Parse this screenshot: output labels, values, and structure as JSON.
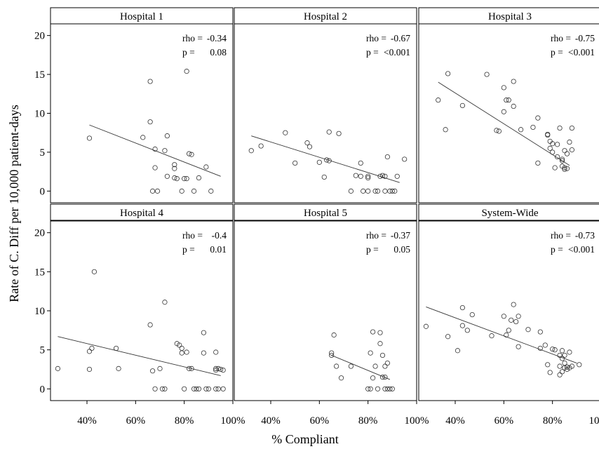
{
  "chart_data": {
    "type": "scatter",
    "xlabel": "% Compliant",
    "ylabel": "Rate of C. Diff per 10,000 patient-days",
    "xlim": [
      0.25,
      1.0
    ],
    "ylim": [
      -1.5,
      21.5
    ],
    "x_ticks": [
      0.4,
      0.6,
      0.8,
      1.0
    ],
    "x_tick_labels": [
      "40%",
      "60%",
      "80%",
      "100%"
    ],
    "y_ticks": [
      0,
      5,
      10,
      15,
      20
    ],
    "y_tick_labels": [
      "0",
      "5",
      "10",
      "15",
      "20"
    ],
    "stat_labels": {
      "rho": "rho =",
      "p": "p ="
    },
    "panels": [
      {
        "title": "Hospital 1",
        "rho": "-0.34",
        "p": "0.08",
        "fit": [
          [
            0.41,
            8.5
          ],
          [
            0.95,
            1.9
          ]
        ],
        "points": [
          [
            0.41,
            6.8
          ],
          [
            0.66,
            14.1
          ],
          [
            0.66,
            8.9
          ],
          [
            0.63,
            6.9
          ],
          [
            0.68,
            5.4
          ],
          [
            0.68,
            3.0
          ],
          [
            0.67,
            0.0
          ],
          [
            0.69,
            0.0
          ],
          [
            0.72,
            5.2
          ],
          [
            0.73,
            7.1
          ],
          [
            0.73,
            1.9
          ],
          [
            0.76,
            3.4
          ],
          [
            0.76,
            2.9
          ],
          [
            0.76,
            1.7
          ],
          [
            0.77,
            1.6
          ],
          [
            0.79,
            0.0
          ],
          [
            0.8,
            1.6
          ],
          [
            0.81,
            1.6
          ],
          [
            0.81,
            15.4
          ],
          [
            0.82,
            4.8
          ],
          [
            0.83,
            4.7
          ],
          [
            0.84,
            0.0
          ],
          [
            0.86,
            1.7
          ],
          [
            0.89,
            3.1
          ],
          [
            0.91,
            0.0
          ]
        ]
      },
      {
        "title": "Hospital 2",
        "rho": "-0.67",
        "p": "<0.001",
        "fit": [
          [
            0.32,
            7.1
          ],
          [
            0.93,
            1.1
          ]
        ],
        "points": [
          [
            0.32,
            5.2
          ],
          [
            0.36,
            5.8
          ],
          [
            0.46,
            7.5
          ],
          [
            0.5,
            3.6
          ],
          [
            0.55,
            6.2
          ],
          [
            0.56,
            5.7
          ],
          [
            0.6,
            3.7
          ],
          [
            0.63,
            4.0
          ],
          [
            0.64,
            3.9
          ],
          [
            0.64,
            7.6
          ],
          [
            0.68,
            7.4
          ],
          [
            0.73,
            0.0
          ],
          [
            0.75,
            2.0
          ],
          [
            0.77,
            3.6
          ],
          [
            0.77,
            1.9
          ],
          [
            0.78,
            0.0
          ],
          [
            0.8,
            1.9
          ],
          [
            0.8,
            1.7
          ],
          [
            0.8,
            0.0
          ],
          [
            0.83,
            0.0
          ],
          [
            0.84,
            0.0
          ],
          [
            0.85,
            1.9
          ],
          [
            0.86,
            2.0
          ],
          [
            0.87,
            1.9
          ],
          [
            0.87,
            0.0
          ],
          [
            0.88,
            4.4
          ],
          [
            0.89,
            0.0
          ],
          [
            0.9,
            0.0
          ],
          [
            0.91,
            0.0
          ],
          [
            0.92,
            1.9
          ],
          [
            0.95,
            4.1
          ],
          [
            0.62,
            1.8
          ]
        ]
      },
      {
        "title": "Hospital 3",
        "rho": "-0.75",
        "p": "<0.001",
        "fit": [
          [
            0.33,
            14.0
          ],
          [
            0.87,
            3.3
          ]
        ],
        "points": [
          [
            0.33,
            11.7
          ],
          [
            0.37,
            15.1
          ],
          [
            0.36,
            7.9
          ],
          [
            0.43,
            11.0
          ],
          [
            0.53,
            15.0
          ],
          [
            0.57,
            7.8
          ],
          [
            0.58,
            7.7
          ],
          [
            0.6,
            13.3
          ],
          [
            0.61,
            11.7
          ],
          [
            0.62,
            11.7
          ],
          [
            0.64,
            14.1
          ],
          [
            0.64,
            10.9
          ],
          [
            0.6,
            10.2
          ],
          [
            0.67,
            7.9
          ],
          [
            0.72,
            8.2
          ],
          [
            0.74,
            9.4
          ],
          [
            0.78,
            7.3
          ],
          [
            0.78,
            7.2
          ],
          [
            0.79,
            6.4
          ],
          [
            0.8,
            6.1
          ],
          [
            0.79,
            5.5
          ],
          [
            0.8,
            5.0
          ],
          [
            0.82,
            6.0
          ],
          [
            0.82,
            4.4
          ],
          [
            0.83,
            8.1
          ],
          [
            0.84,
            4.1
          ],
          [
            0.84,
            3.9
          ],
          [
            0.84,
            3.2
          ],
          [
            0.85,
            3.0
          ],
          [
            0.85,
            2.8
          ],
          [
            0.86,
            2.9
          ],
          [
            0.85,
            5.2
          ],
          [
            0.86,
            4.8
          ],
          [
            0.87,
            6.3
          ],
          [
            0.88,
            8.1
          ],
          [
            0.88,
            5.3
          ],
          [
            0.81,
            3.0
          ],
          [
            0.74,
            3.6
          ]
        ]
      },
      {
        "title": "Hospital 4",
        "rho": "-0.4",
        "p": "0.01",
        "fit": [
          [
            0.28,
            6.7
          ],
          [
            0.95,
            1.7
          ]
        ],
        "points": [
          [
            0.28,
            2.6
          ],
          [
            0.41,
            4.8
          ],
          [
            0.42,
            5.2
          ],
          [
            0.41,
            2.5
          ],
          [
            0.43,
            15.0
          ],
          [
            0.52,
            5.2
          ],
          [
            0.53,
            2.6
          ],
          [
            0.66,
            8.2
          ],
          [
            0.67,
            2.3
          ],
          [
            0.68,
            0.0
          ],
          [
            0.7,
            2.6
          ],
          [
            0.71,
            0.0
          ],
          [
            0.72,
            11.1
          ],
          [
            0.72,
            0.0
          ],
          [
            0.77,
            5.8
          ],
          [
            0.78,
            5.6
          ],
          [
            0.79,
            5.2
          ],
          [
            0.8,
            0.0
          ],
          [
            0.79,
            4.6
          ],
          [
            0.82,
            2.6
          ],
          [
            0.83,
            2.6
          ],
          [
            0.81,
            4.7
          ],
          [
            0.84,
            0.0
          ],
          [
            0.85,
            0.0
          ],
          [
            0.86,
            0.0
          ],
          [
            0.88,
            7.2
          ],
          [
            0.88,
            4.6
          ],
          [
            0.89,
            0.0
          ],
          [
            0.9,
            0.0
          ],
          [
            0.93,
            4.7
          ],
          [
            0.93,
            2.6
          ],
          [
            0.93,
            0.0
          ],
          [
            0.94,
            2.6
          ],
          [
            0.95,
            2.5
          ],
          [
            0.94,
            0.0
          ],
          [
            0.96,
            0.0
          ],
          [
            0.96,
            2.4
          ],
          [
            0.93,
            2.4
          ]
        ]
      },
      {
        "title": "Hospital 5",
        "rho": "-0.37",
        "p": "0.05",
        "fit": [
          [
            0.65,
            4.3
          ],
          [
            0.89,
            1.2
          ]
        ],
        "points": [
          [
            0.65,
            4.6
          ],
          [
            0.65,
            4.3
          ],
          [
            0.66,
            6.9
          ],
          [
            0.67,
            2.9
          ],
          [
            0.69,
            1.4
          ],
          [
            0.73,
            2.9
          ],
          [
            0.8,
            0.0
          ],
          [
            0.81,
            0.0
          ],
          [
            0.81,
            4.6
          ],
          [
            0.82,
            7.3
          ],
          [
            0.82,
            1.4
          ],
          [
            0.83,
            2.9
          ],
          [
            0.84,
            0.0
          ],
          [
            0.85,
            7.2
          ],
          [
            0.85,
            5.8
          ],
          [
            0.86,
            4.3
          ],
          [
            0.87,
            2.9
          ],
          [
            0.87,
            1.5
          ],
          [
            0.87,
            0.0
          ],
          [
            0.88,
            0.0
          ],
          [
            0.88,
            3.3
          ],
          [
            0.89,
            0.0
          ],
          [
            0.9,
            0.0
          ],
          [
            0.86,
            1.5
          ]
        ]
      },
      {
        "title": "System-Wide",
        "rho": "-0.73",
        "p": "<0.001",
        "fit": [
          [
            0.28,
            10.5
          ],
          [
            0.9,
            3.3
          ]
        ],
        "points": [
          [
            0.28,
            8.0
          ],
          [
            0.37,
            6.7
          ],
          [
            0.41,
            4.9
          ],
          [
            0.43,
            10.4
          ],
          [
            0.43,
            8.1
          ],
          [
            0.45,
            7.5
          ],
          [
            0.47,
            9.5
          ],
          [
            0.55,
            6.8
          ],
          [
            0.6,
            9.3
          ],
          [
            0.61,
            6.9
          ],
          [
            0.62,
            7.5
          ],
          [
            0.63,
            8.8
          ],
          [
            0.64,
            10.8
          ],
          [
            0.65,
            8.6
          ],
          [
            0.66,
            9.3
          ],
          [
            0.66,
            5.4
          ],
          [
            0.7,
            7.6
          ],
          [
            0.75,
            7.3
          ],
          [
            0.75,
            5.2
          ],
          [
            0.77,
            5.6
          ],
          [
            0.78,
            3.1
          ],
          [
            0.79,
            2.1
          ],
          [
            0.8,
            5.1
          ],
          [
            0.81,
            5.0
          ],
          [
            0.83,
            4.3
          ],
          [
            0.83,
            2.9
          ],
          [
            0.83,
            1.8
          ],
          [
            0.84,
            2.2
          ],
          [
            0.84,
            4.9
          ],
          [
            0.84,
            3.9
          ],
          [
            0.85,
            4.3
          ],
          [
            0.85,
            3.3
          ],
          [
            0.86,
            2.8
          ],
          [
            0.86,
            2.5
          ],
          [
            0.87,
            4.7
          ],
          [
            0.87,
            2.7
          ],
          [
            0.88,
            2.9
          ],
          [
            0.91,
            3.1
          ],
          [
            0.85,
            2.7
          ]
        ]
      }
    ]
  }
}
